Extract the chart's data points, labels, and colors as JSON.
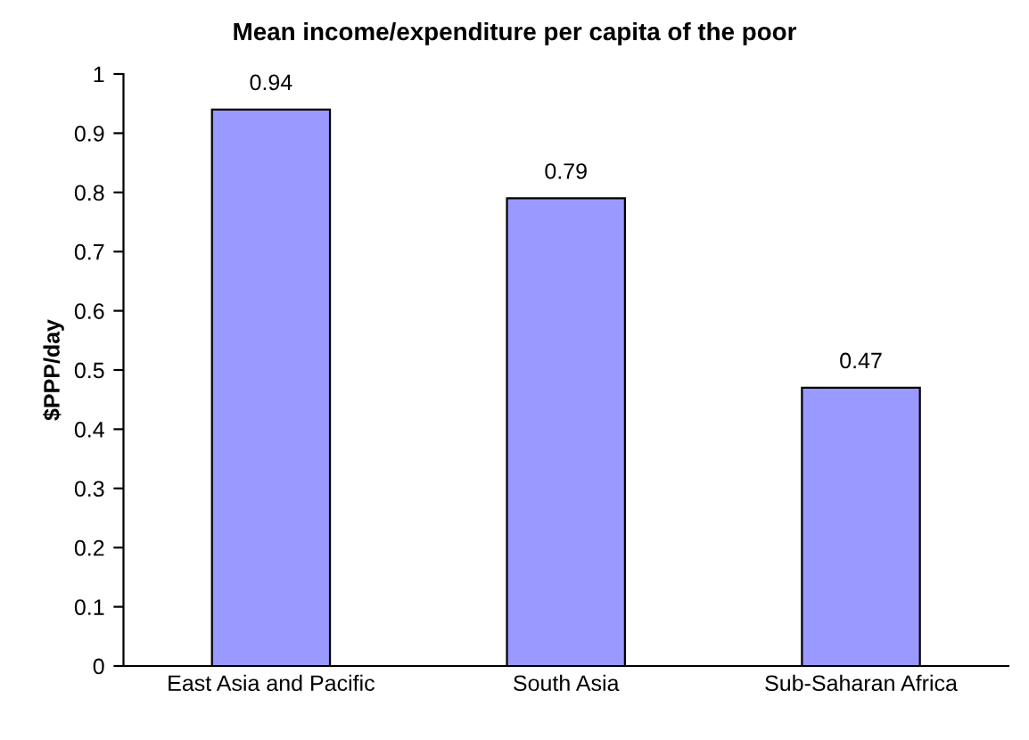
{
  "chart_data": {
    "type": "bar",
    "title": "Mean income/expenditure per capita of the poor",
    "ylabel": "$PPP/day",
    "categories": [
      "East Asia and Pacific",
      "South Asia",
      "Sub-Saharan Africa"
    ],
    "values": [
      0.94,
      0.79,
      0.47
    ],
    "color": "#9999ff",
    "ylim": [
      0,
      1
    ],
    "yticks": [
      0,
      0.1,
      0.2,
      0.3,
      0.4,
      0.5,
      0.6,
      0.7,
      0.8,
      0.9,
      1
    ],
    "data_labels": true,
    "grid": false,
    "legend": false
  }
}
